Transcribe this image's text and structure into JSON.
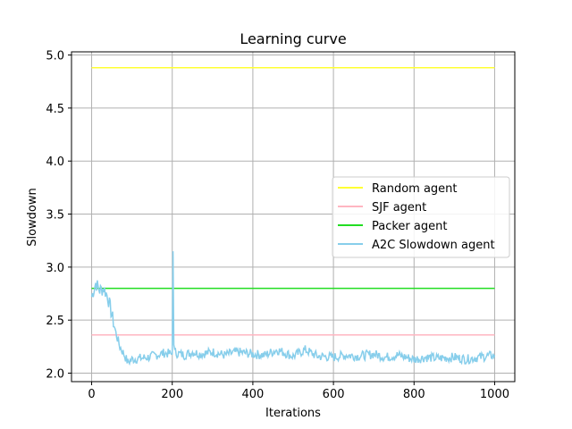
{
  "chart_data": {
    "type": "line",
    "title": "Learning curve",
    "xlabel": "Iterations",
    "ylabel": "Slowdown",
    "xlim": [
      -50,
      1050
    ],
    "ylim": [
      1.92,
      5.03
    ],
    "xticks": [
      0,
      200,
      400,
      600,
      800,
      1000
    ],
    "xtick_labels": [
      "0",
      "200",
      "400",
      "600",
      "800",
      "1000"
    ],
    "yticks": [
      2.0,
      2.5,
      3.0,
      3.5,
      4.0,
      4.5,
      5.0
    ],
    "ytick_labels": [
      "2.0",
      "2.5",
      "3.0",
      "3.5",
      "4.0",
      "4.5",
      "5.0"
    ],
    "grid": true,
    "legend_position": "center-right",
    "series": [
      {
        "name": "Random agent",
        "color": "#ffff33",
        "x": [
          0,
          1000
        ],
        "y": [
          4.88,
          4.88
        ]
      },
      {
        "name": "SJF agent",
        "color": "#ffb6c1",
        "x": [
          0,
          1000
        ],
        "y": [
          2.36,
          2.36
        ]
      },
      {
        "name": "Packer agent",
        "color": "#22dd22",
        "x": [
          0,
          1000
        ],
        "y": [
          2.8,
          2.8
        ]
      },
      {
        "name": "A2C Slowdown agent",
        "color": "#87ceeb",
        "x": [
          0,
          10,
          20,
          30,
          40,
          50,
          60,
          70,
          80,
          90,
          100,
          120,
          140,
          160,
          180,
          200,
          202,
          204,
          206,
          210,
          230,
          250,
          270,
          300,
          330,
          360,
          400,
          430,
          460,
          500,
          530,
          560,
          600,
          630,
          660,
          700,
          730,
          760,
          800,
          830,
          860,
          900,
          930,
          960,
          1000
        ],
        "y": [
          2.72,
          2.85,
          2.78,
          2.8,
          2.72,
          2.55,
          2.38,
          2.25,
          2.18,
          2.1,
          2.13,
          2.14,
          2.15,
          2.17,
          2.19,
          2.18,
          3.15,
          2.3,
          2.2,
          2.19,
          2.17,
          2.2,
          2.18,
          2.2,
          2.17,
          2.2,
          2.18,
          2.17,
          2.22,
          2.16,
          2.22,
          2.16,
          2.15,
          2.17,
          2.16,
          2.18,
          2.15,
          2.17,
          2.13,
          2.15,
          2.14,
          2.15,
          2.13,
          2.15,
          2.17
        ]
      }
    ]
  }
}
